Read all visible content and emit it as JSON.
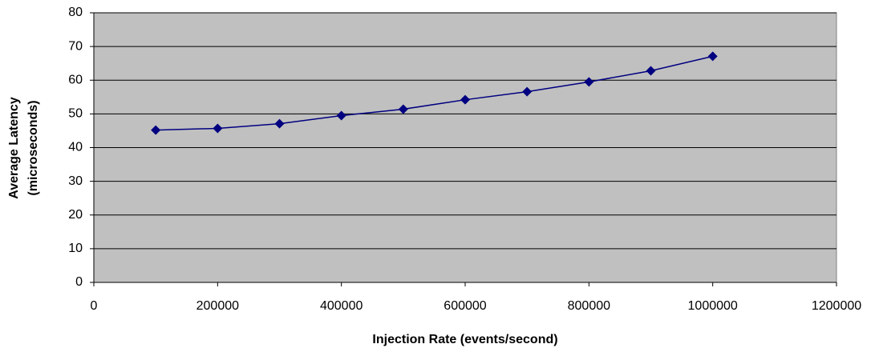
{
  "chart_data": {
    "type": "line",
    "xlabel": "Injection Rate (events/second)",
    "ylabel": [
      "Average Latency",
      "(microseconds)"
    ],
    "x": [
      100000,
      200000,
      300000,
      400000,
      500000,
      600000,
      700000,
      800000,
      900000,
      1000000
    ],
    "series": [
      {
        "color": "#000080",
        "values": [
          45.2,
          45.7,
          47.1,
          49.5,
          51.4,
          54.2,
          56.6,
          59.5,
          62.8,
          67.1
        ]
      }
    ],
    "xlim": [
      0,
      1200000
    ],
    "xticks": [
      0,
      200000,
      400000,
      600000,
      800000,
      1000000,
      1200000
    ],
    "ylim": [
      0,
      80
    ],
    "yticks": [
      0,
      10,
      20,
      30,
      40,
      50,
      60,
      70,
      80
    ],
    "grid": true,
    "background": "#c0c0c0"
  }
}
